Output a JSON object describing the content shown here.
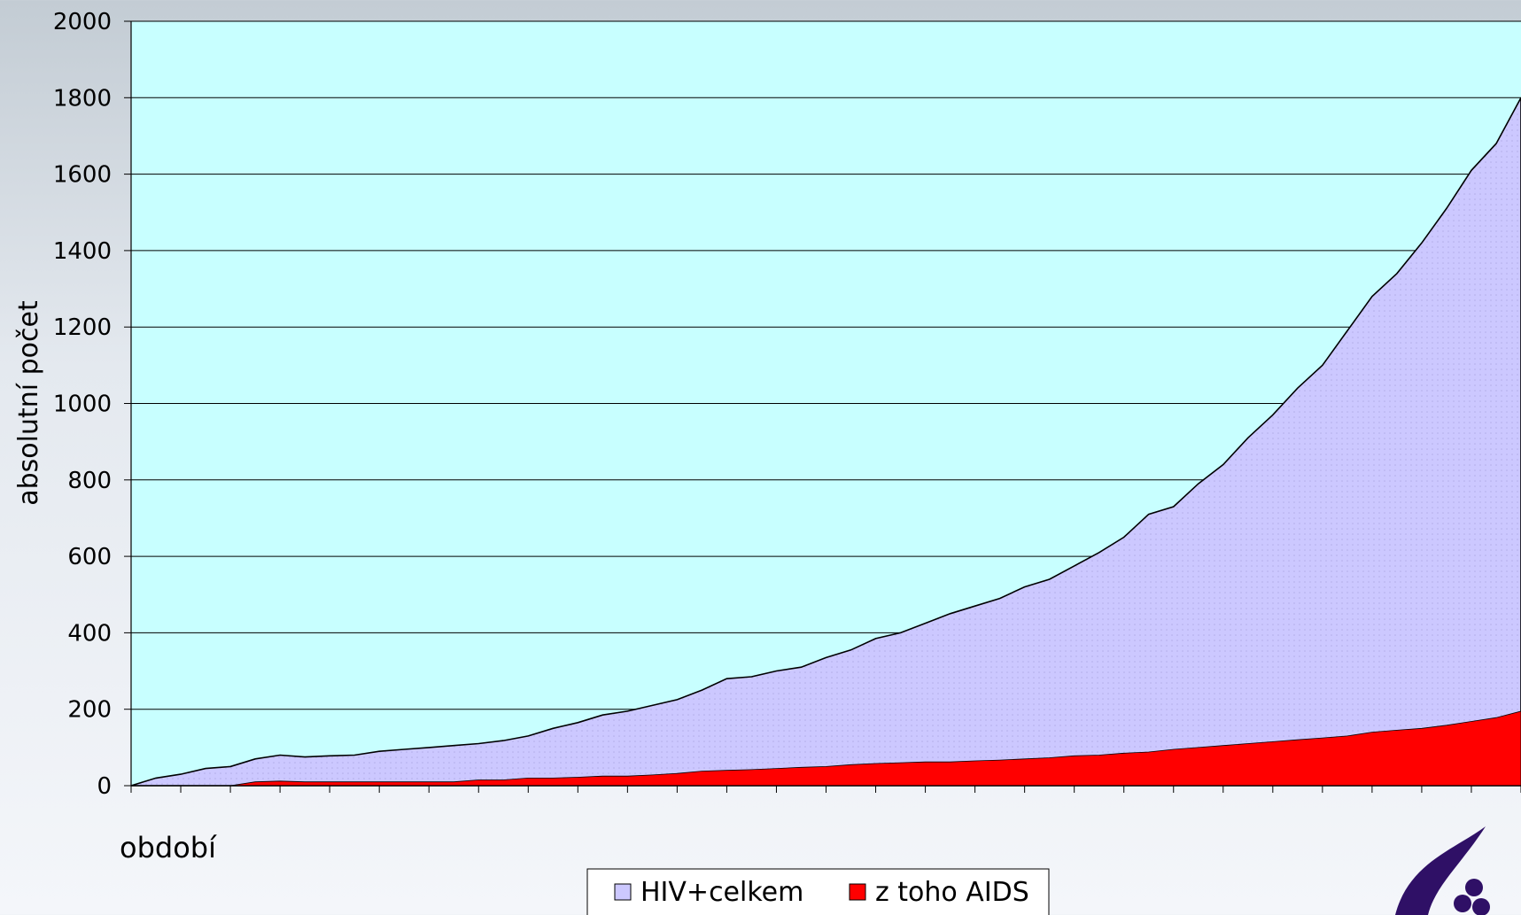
{
  "chart_data": {
    "type": "area",
    "ylabel": "absolutní počet",
    "xlabel": "období",
    "categories": [
      null,
      null,
      null,
      null,
      null,
      null,
      null,
      null,
      null,
      null,
      null,
      null,
      null,
      null,
      null,
      null,
      null,
      null,
      null,
      null,
      null,
      null,
      null,
      null,
      null,
      null,
      null,
      null,
      null,
      null,
      null,
      null,
      null,
      null,
      null,
      null,
      null,
      null,
      null,
      null,
      null,
      null,
      null,
      null,
      null,
      null,
      null,
      null,
      null,
      null,
      null,
      null,
      null,
      null,
      null,
      null,
      null
    ],
    "series": [
      {
        "name": "HIV+celkem",
        "color": "#ccc8ff",
        "values": [
          0,
          20,
          30,
          45,
          50,
          70,
          80,
          75,
          78,
          80,
          90,
          95,
          100,
          105,
          110,
          118,
          130,
          150,
          165,
          185,
          195,
          210,
          225,
          250,
          280,
          285,
          300,
          310,
          335,
          355,
          385,
          400,
          425,
          450,
          470,
          490,
          520,
          540,
          575,
          610,
          650,
          710,
          730,
          790,
          840,
          910,
          970,
          1040,
          1100,
          1190,
          1280,
          1340,
          1420,
          1510,
          1610,
          1680,
          1800
        ]
      },
      {
        "name": "z toho AIDS",
        "color": "#ff0000",
        "values": [
          0,
          0,
          0,
          0,
          0,
          10,
          12,
          10,
          10,
          10,
          10,
          10,
          10,
          10,
          15,
          15,
          20,
          20,
          22,
          25,
          25,
          28,
          32,
          38,
          40,
          42,
          45,
          48,
          50,
          55,
          58,
          60,
          62,
          62,
          65,
          67,
          70,
          73,
          78,
          80,
          85,
          88,
          95,
          100,
          105,
          110,
          115,
          120,
          125,
          130,
          140,
          145,
          150,
          158,
          168,
          178,
          195
        ]
      }
    ],
    "ylim": [
      0,
      2000
    ],
    "yticks": [
      0,
      200,
      400,
      600,
      800,
      1000,
      1200,
      1400,
      1600,
      1800,
      2000
    ],
    "grid": true,
    "legend": "bottom"
  }
}
